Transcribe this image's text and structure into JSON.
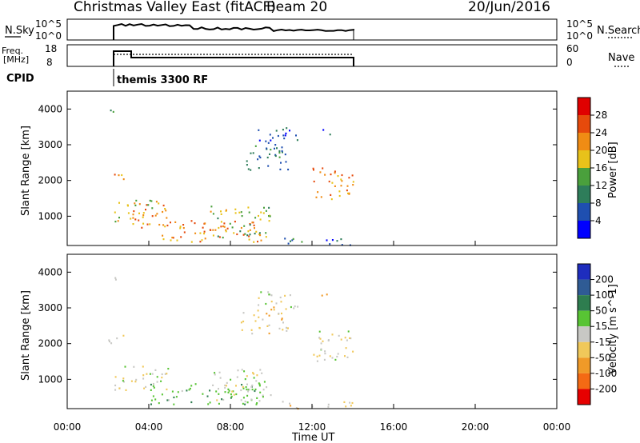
{
  "header": {
    "station": "Christmas Valley East (fitACF)",
    "beam": "Beam 20",
    "date": "20/Jun/2016"
  },
  "summary": {
    "nsky_label": "N.Sky",
    "nsky_ticks": [
      "10^5",
      "10^0"
    ],
    "nsearch_label": "N.Search",
    "freq_label_1": "Freq.",
    "freq_label_2": "[MHz]",
    "freq_ticks": [
      "18",
      "8"
    ],
    "nave_label": "Nave",
    "nave_ticks": [
      "60",
      "0"
    ],
    "cpid_label": "CPID",
    "cpid_value": "themis 3300 RF"
  },
  "axes": {
    "xlabel": "Time UT",
    "ylabel": "Slant Range [km]",
    "x_ticks": [
      "00:00",
      "04:00",
      "08:00",
      "12:00",
      "16:00",
      "20:00",
      "00:00"
    ],
    "y_ticks": [
      "1000",
      "2000",
      "3000",
      "4000"
    ]
  },
  "power_bar": {
    "label": "Power [dB]",
    "ticks": [
      "4",
      "8",
      "12",
      "16",
      "20",
      "24",
      "28"
    ],
    "colors": [
      "#0000ff",
      "#1f4fb0",
      "#2e7d5a",
      "#4aa03c",
      "#e8c21a",
      "#f08c14",
      "#e64a0c",
      "#e00000"
    ]
  },
  "velocity_bar": {
    "label": "Velocity [m s^-1]",
    "ticks": [
      "200",
      "100",
      "50",
      "15",
      "-15",
      "-50",
      "-100",
      "-200"
    ],
    "colors": [
      "#1e2dbe",
      "#2f5b94",
      "#2e7d4f",
      "#58c434",
      "#c8c8c4",
      "#f0c85a",
      "#f09a28",
      "#f46a14",
      "#e60000"
    ]
  },
  "chart_data": [
    {
      "type": "heatmap",
      "title": "Power",
      "xlabel": "Time UT",
      "ylabel": "Slant Range [km]",
      "xlim": [
        0,
        24
      ],
      "ylim": [
        180,
        4500
      ],
      "colorbar": "Power [dB]",
      "data_window_hours": [
        2,
        14
      ],
      "echo_regions": [
        {
          "t0": 2.1,
          "t1": 2.7,
          "r0": 3800,
          "r1": 4000,
          "level": 12
        },
        {
          "t0": 2.0,
          "t1": 2.9,
          "r0": 2000,
          "r1": 2250,
          "level": 22
        },
        {
          "t0": 2.3,
          "t1": 5.0,
          "r0": 700,
          "r1": 1400,
          "level": 20
        },
        {
          "t0": 3.2,
          "t1": 4.5,
          "r0": 1000,
          "r1": 1500,
          "level": 18
        },
        {
          "t0": 4.5,
          "t1": 9.5,
          "r0": 300,
          "r1": 900,
          "level": 22
        },
        {
          "t0": 7.0,
          "t1": 10.0,
          "r0": 400,
          "r1": 1300,
          "level": 16
        },
        {
          "t0": 8.5,
          "t1": 10.8,
          "r0": 2300,
          "r1": 3100,
          "level": 10
        },
        {
          "t0": 9.3,
          "t1": 11.3,
          "r0": 3000,
          "r1": 3500,
          "level": 6
        },
        {
          "t0": 10.5,
          "t1": 14.0,
          "r0": 200,
          "r1": 400,
          "level": 8
        },
        {
          "t0": 12.0,
          "t1": 14.0,
          "r0": 1500,
          "r1": 2400,
          "level": 22
        },
        {
          "t0": 12.3,
          "t1": 12.9,
          "r0": 3300,
          "r1": 3500,
          "level": 8
        }
      ]
    },
    {
      "type": "heatmap",
      "title": "Velocity",
      "xlabel": "Time UT",
      "ylabel": "Slant Range [km]",
      "xlim": [
        0,
        24
      ],
      "ylim": [
        180,
        4500
      ],
      "colorbar": "Velocity [m s^-1]",
      "data_window_hours": [
        2,
        14
      ],
      "echo_regions": [
        {
          "t0": 2.1,
          "t1": 2.7,
          "r0": 3800,
          "r1": 4000,
          "level": 0
        },
        {
          "t0": 2.0,
          "t1": 2.9,
          "r0": 2000,
          "r1": 2300,
          "level": 0
        },
        {
          "t0": 2.3,
          "t1": 5.0,
          "r0": 700,
          "r1": 1400,
          "level": 0
        },
        {
          "t0": 4.0,
          "t1": 9.5,
          "r0": 300,
          "r1": 900,
          "level": 40
        },
        {
          "t0": 7.0,
          "t1": 10.0,
          "r0": 400,
          "r1": 1300,
          "level": 0
        },
        {
          "t0": 8.5,
          "t1": 10.8,
          "r0": 2300,
          "r1": 3100,
          "level": -30
        },
        {
          "t0": 9.3,
          "t1": 11.3,
          "r0": 3000,
          "r1": 3500,
          "level": 0
        },
        {
          "t0": 10.5,
          "t1": 14.0,
          "r0": 200,
          "r1": 400,
          "level": -30
        },
        {
          "t0": 12.0,
          "t1": 14.0,
          "r0": 1500,
          "r1": 2400,
          "level": 0
        },
        {
          "t0": 12.3,
          "t1": 12.9,
          "r0": 3300,
          "r1": 3500,
          "level": -60
        }
      ]
    }
  ]
}
